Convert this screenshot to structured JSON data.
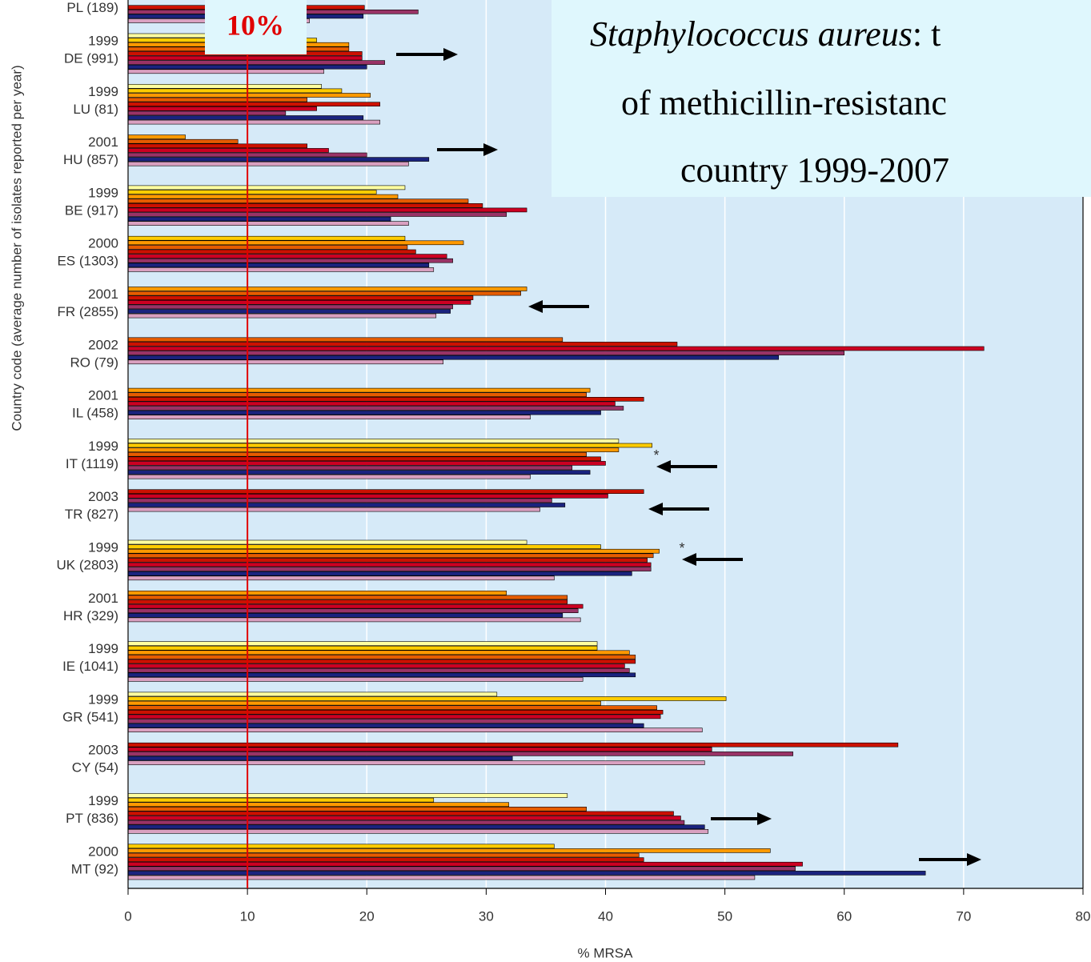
{
  "chart_data": {
    "type": "hbar",
    "title_italic": "Staphylococcus aureus",
    "title_lines": [
      ": t",
      "of methicillin-resistanc",
      "country 1999-2007"
    ],
    "x_label": "% MRSA",
    "y_label": "Country code (average number of isolates reported per year)",
    "annotation": "10%",
    "reference_value": 10,
    "asterisks": [
      "*",
      "*"
    ],
    "categories": [
      "PL (189)",
      "DE (991)",
      "LU (81)",
      "HU (857)",
      "BE (917)",
      "ES (1303)",
      "FR (2855)",
      "RO (79)",
      "IL (458)",
      "IT (1119)",
      "TR (827)",
      "UK (2803)",
      "HR (329)",
      "IE (1041)",
      "GR (541)",
      "CY (54)",
      "PT (836)",
      "MT (92)"
    ],
    "start_years": [
      null,
      "1999",
      "1999",
      "2001",
      "1999",
      "2000",
      "2001",
      "2002",
      "2001",
      "1999",
      "2003",
      "1999",
      "2001",
      "1999",
      "1999",
      "2003",
      "1999",
      "2000"
    ],
    "series": [
      {
        "color": "#ffffa0",
        "values": [
          null,
          14.5,
          16.2,
          null,
          23.2,
          null,
          null,
          null,
          null,
          41.1,
          null,
          33.4,
          null,
          39.3,
          30.9,
          null,
          36.8,
          null
        ]
      },
      {
        "color": "#ffcc00",
        "values": [
          null,
          15.8,
          17.9,
          null,
          20.8,
          23.2,
          null,
          null,
          null,
          43.9,
          null,
          39.6,
          null,
          39.3,
          50.1,
          null,
          25.6,
          35.7
        ]
      },
      {
        "color": "#ff9900",
        "values": [
          null,
          18.5,
          20.3,
          4.8,
          22.6,
          28.1,
          33.4,
          null,
          38.7,
          41.1,
          null,
          44.5,
          31.7,
          42.0,
          39.6,
          null,
          31.9,
          53.8
        ]
      },
      {
        "color": "#e65c00",
        "values": [
          null,
          18.5,
          15.0,
          9.2,
          28.5,
          23.4,
          32.9,
          36.4,
          38.4,
          38.4,
          null,
          44.0,
          36.8,
          42.5,
          44.3,
          null,
          38.4,
          42.8
        ]
      },
      {
        "color": "#cc1100",
        "values": [
          19.8,
          19.6,
          21.1,
          15.0,
          29.7,
          24.1,
          28.9,
          46.0,
          43.2,
          39.6,
          43.2,
          43.5,
          36.8,
          42.5,
          44.8,
          64.5,
          45.7,
          43.2
        ]
      },
      {
        "color": "#cc0022",
        "values": [
          null,
          19.6,
          15.8,
          16.8,
          33.4,
          26.7,
          28.7,
          71.7,
          40.8,
          40.0,
          40.2,
          43.8,
          38.1,
          41.6,
          44.6,
          48.9,
          46.3,
          56.5
        ]
      },
      {
        "color": "#993366",
        "values": [
          24.3,
          21.5,
          13.2,
          20.0,
          31.7,
          27.2,
          27.2,
          60.0,
          41.5,
          37.2,
          35.5,
          43.8,
          37.7,
          42.0,
          42.3,
          55.7,
          46.6,
          55.9
        ]
      },
      {
        "color": "#1a237e",
        "values": [
          19.7,
          20.0,
          19.7,
          25.2,
          22.0,
          25.2,
          27.0,
          54.5,
          39.6,
          38.7,
          36.6,
          42.2,
          36.4,
          42.5,
          43.2,
          32.2,
          48.3,
          66.8
        ]
      },
      {
        "color": "#d9a0c0",
        "values": [
          15.2,
          16.4,
          21.1,
          23.5,
          23.5,
          25.6,
          25.8,
          26.4,
          33.7,
          33.7,
          34.5,
          35.7,
          37.9,
          38.1,
          48.1,
          48.3,
          48.6,
          52.5
        ]
      }
    ],
    "xlim": [
      0,
      80
    ],
    "xticks": [
      0,
      10,
      20,
      30,
      40,
      50,
      60,
      70,
      80
    ],
    "grid": true
  }
}
